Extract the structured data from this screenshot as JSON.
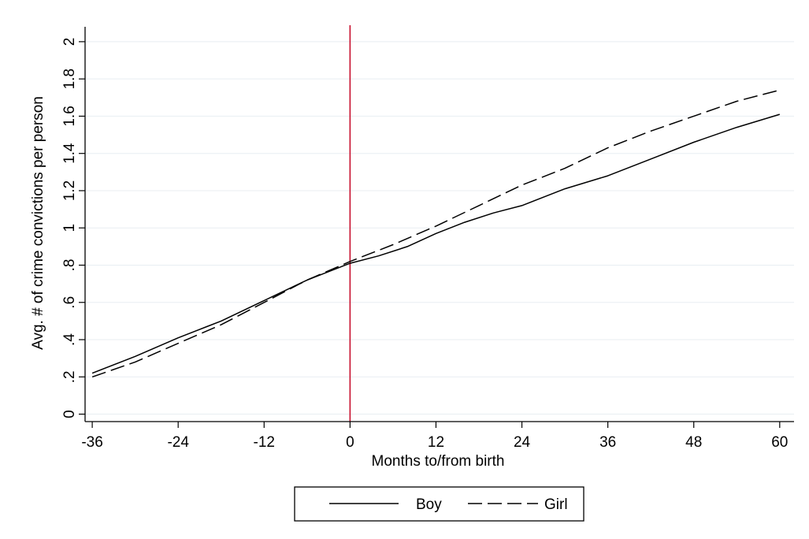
{
  "chart_data": {
    "type": "line",
    "title": "",
    "xlabel": "Months to/from birth",
    "ylabel": "Avg. # of crime convictions per person",
    "xlim": [
      -37,
      62
    ],
    "ylim": [
      -0.04,
      2.08
    ],
    "x_ticks": [
      -36,
      -24,
      -12,
      0,
      12,
      24,
      36,
      48,
      60
    ],
    "x_tick_labels": [
      "-36",
      "-24",
      "-12",
      "0",
      "12",
      "24",
      "36",
      "48",
      "60"
    ],
    "y_ticks": [
      0,
      0.2,
      0.4,
      0.6,
      0.8,
      1,
      1.2,
      1.4,
      1.6,
      1.8,
      2
    ],
    "y_tick_labels": [
      "0",
      ".2",
      ".4",
      ".6",
      ".8",
      "1",
      "1.2",
      "1.4",
      "1.6",
      "1.8",
      "2"
    ],
    "grid": true,
    "vertical_line": {
      "x": 0,
      "color": "#c8102e"
    },
    "legend_position": "bottom-center",
    "series": [
      {
        "name": "Boy",
        "style": "solid",
        "color": "#000000",
        "x": [
          -36,
          -30,
          -24,
          -20,
          -18,
          -12,
          -6,
          0,
          4,
          8,
          12,
          16,
          20,
          24,
          30,
          36,
          42,
          48,
          54,
          60
        ],
        "y": [
          0.22,
          0.31,
          0.41,
          0.47,
          0.5,
          0.61,
          0.72,
          0.81,
          0.85,
          0.9,
          0.97,
          1.03,
          1.08,
          1.12,
          1.21,
          1.28,
          1.37,
          1.46,
          1.54,
          1.61
        ]
      },
      {
        "name": "Girl",
        "style": "dashed",
        "color": "#000000",
        "x": [
          -36,
          -30,
          -24,
          -18,
          -12,
          -6,
          0,
          6,
          12,
          18,
          24,
          30,
          36,
          42,
          48,
          54,
          60
        ],
        "y": [
          0.2,
          0.28,
          0.38,
          0.48,
          0.6,
          0.72,
          0.82,
          0.91,
          1.01,
          1.12,
          1.23,
          1.32,
          1.43,
          1.52,
          1.6,
          1.68,
          1.74
        ]
      }
    ]
  }
}
